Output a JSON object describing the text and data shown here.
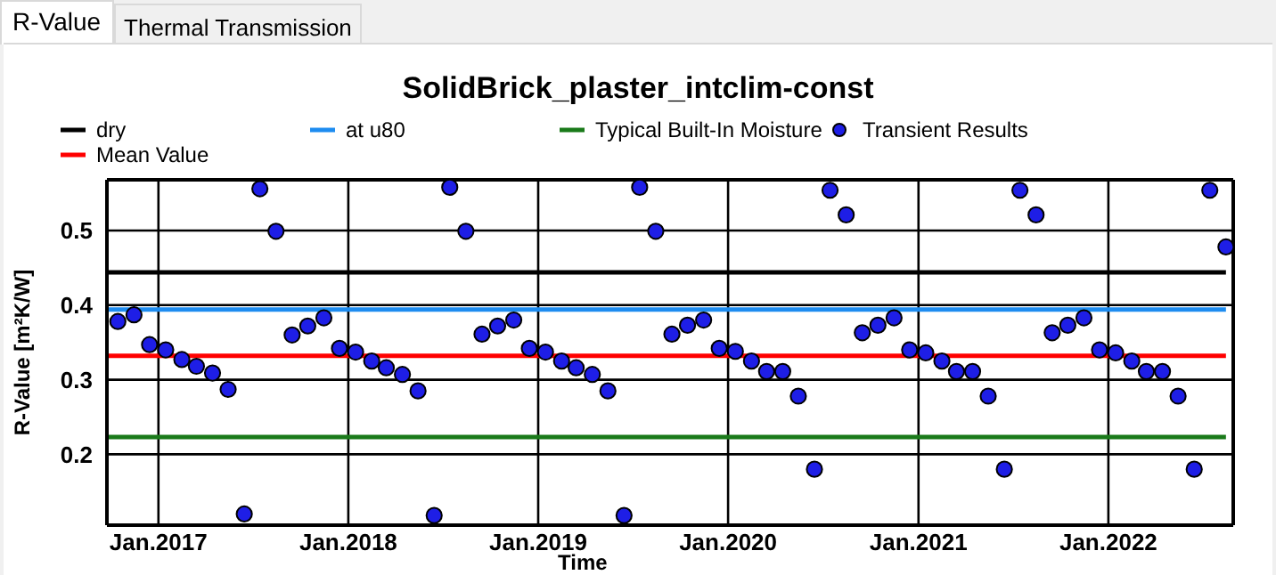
{
  "chart_data": {
    "type": "scatter",
    "title": "SolidBrick_plaster_intclim-const",
    "xlabel": "Time",
    "ylabel": "R-Value [m²K/W]",
    "annotations": [
      "R-Value",
      "Thermal Transmission"
    ],
    "xlim": [
      "2016-09-24",
      "2022-08-29"
    ],
    "ylim": [
      0.105,
      0.568
    ],
    "xticks": [
      {
        "value": "2017-01-01",
        "label": "Jan.2017"
      },
      {
        "value": "2018-01-01",
        "label": "Jan.2018"
      },
      {
        "value": "2019-01-01",
        "label": "Jan.2019"
      },
      {
        "value": "2020-01-01",
        "label": "Jan.2020"
      },
      {
        "value": "2021-01-01",
        "label": "Jan.2021"
      },
      {
        "value": "2022-01-01",
        "label": "Jan.2022"
      }
    ],
    "yticks": [
      0.2,
      0.3,
      0.4,
      0.5
    ],
    "grid": true,
    "legend": "top",
    "series": [
      {
        "name": "dry",
        "type": "line",
        "color": "#000000",
        "x": [
          "2016-09-24",
          "2022-08-15"
        ],
        "values": [
          0.444,
          0.444
        ]
      },
      {
        "name": "at u80",
        "type": "line",
        "color": "#1e8cf0",
        "x": [
          "2016-09-24",
          "2022-08-15"
        ],
        "values": [
          0.394,
          0.394
        ]
      },
      {
        "name": "Typical Built-In Moisture",
        "type": "line",
        "color": "#1a7a1a",
        "x": [
          "2016-09-24",
          "2022-08-15"
        ],
        "values": [
          0.223,
          0.223
        ]
      },
      {
        "name": "Transient Results",
        "color": "#1e1ee6",
        "marker": "circle",
        "x": [
          "2016-10-15",
          "2016-11-15",
          "2016-12-15",
          "2017-01-15",
          "2017-02-15",
          "2017-03-15",
          "2017-04-15",
          "2017-05-15",
          "2017-06-15",
          "2017-07-15",
          "2017-08-15",
          "2017-09-15",
          "2017-10-15",
          "2017-11-15",
          "2017-12-15",
          "2018-01-15",
          "2018-02-15",
          "2018-03-15",
          "2018-04-15",
          "2018-05-15",
          "2018-06-15",
          "2018-07-15",
          "2018-08-15",
          "2018-09-15",
          "2018-10-15",
          "2018-11-15",
          "2018-12-15",
          "2019-01-15",
          "2019-02-15",
          "2019-03-15",
          "2019-04-15",
          "2019-05-15",
          "2019-06-15",
          "2019-07-15",
          "2019-08-15",
          "2019-09-15",
          "2019-10-15",
          "2019-11-15",
          "2019-12-15",
          "2020-01-15",
          "2020-02-15",
          "2020-03-15",
          "2020-04-15",
          "2020-05-15",
          "2020-06-15",
          "2020-07-15",
          "2020-08-15",
          "2020-09-15",
          "2020-10-15",
          "2020-11-15",
          "2020-12-15",
          "2021-01-15",
          "2021-02-15",
          "2021-03-15",
          "2021-04-15",
          "2021-05-15",
          "2021-06-15",
          "2021-07-15",
          "2021-08-15",
          "2021-09-15",
          "2021-10-15",
          "2021-11-15",
          "2021-12-15",
          "2022-01-15",
          "2022-02-15",
          "2022-03-15",
          "2022-04-15",
          "2022-05-15",
          "2022-06-15",
          "2022-07-15",
          "2022-08-15"
        ],
        "values": [
          0.378,
          0.387,
          0.347,
          0.34,
          0.327,
          0.318,
          0.309,
          0.287,
          0.12,
          0.556,
          0.499,
          0.36,
          0.372,
          0.383,
          0.342,
          0.337,
          0.325,
          0.316,
          0.307,
          0.285,
          0.118,
          0.558,
          0.499,
          0.361,
          0.372,
          0.38,
          0.342,
          0.337,
          0.325,
          0.316,
          0.307,
          0.285,
          0.118,
          0.558,
          0.499,
          0.361,
          0.373,
          0.38,
          0.342,
          0.338,
          0.325,
          0.311,
          0.311,
          0.278,
          0.18,
          0.554,
          0.521,
          0.363,
          0.373,
          0.383,
          0.34,
          0.336,
          0.325,
          0.311,
          0.311,
          0.278,
          0.18,
          0.554,
          0.521,
          0.363,
          0.373,
          0.383,
          0.34,
          0.336,
          0.325,
          0.311,
          0.311,
          0.278,
          0.18,
          0.554,
          0.478
        ]
      },
      {
        "name": "Mean Value",
        "type": "line",
        "color": "#ff0000",
        "x": [
          "2016-09-24",
          "2022-08-15"
        ],
        "values": [
          0.332,
          0.332
        ]
      }
    ]
  }
}
